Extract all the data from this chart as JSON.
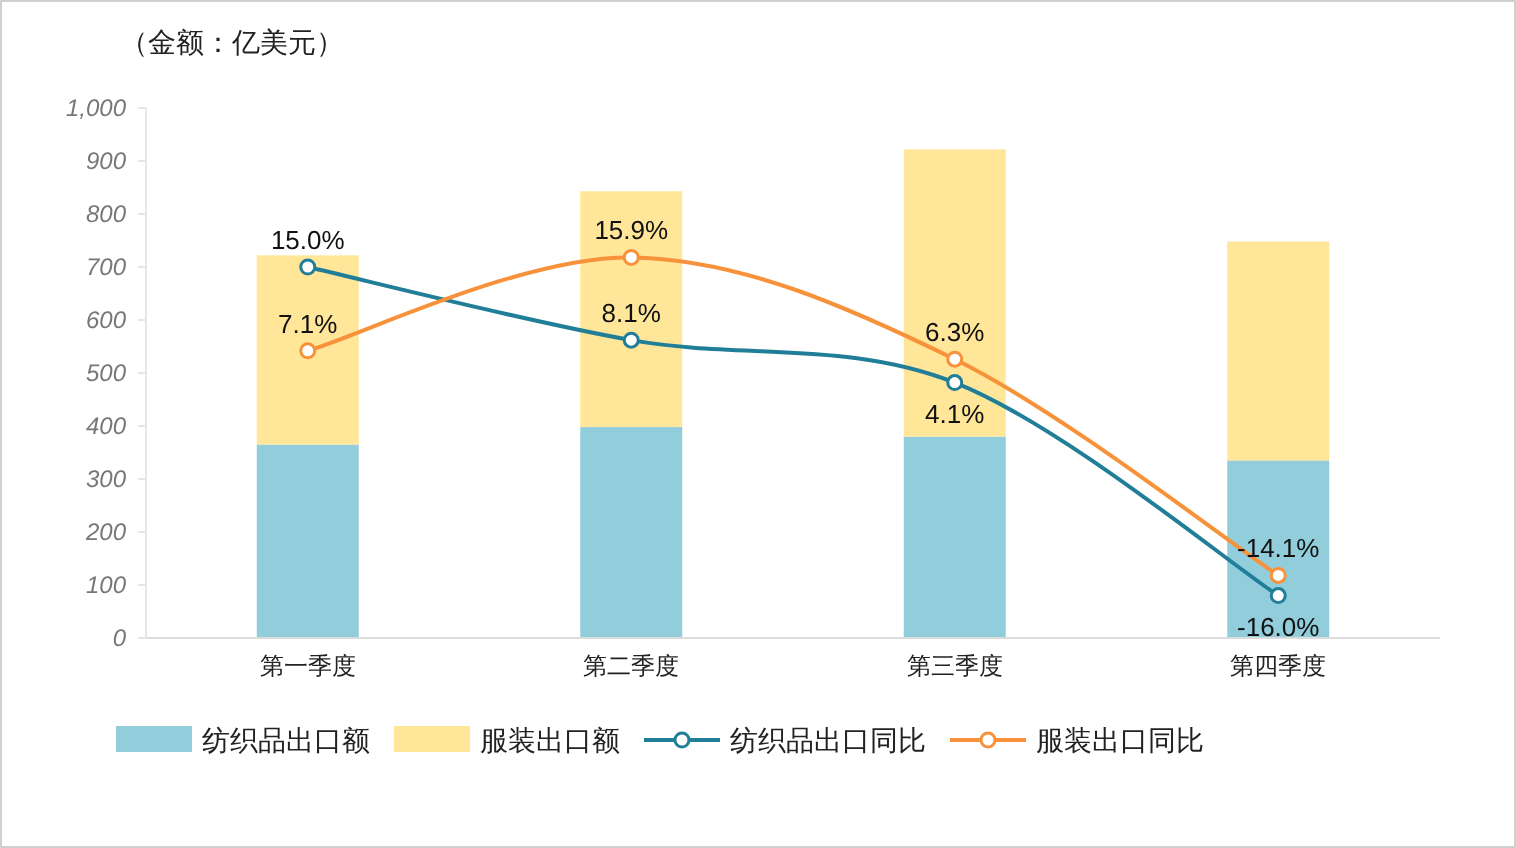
{
  "chart_data": {
    "type": "bar",
    "stacked": true,
    "ylabel": "（金额：亿美元）",
    "categories": [
      "第一季度",
      "第二季度",
      "第三季度",
      "第四季度"
    ],
    "series": [
      {
        "name": "纺织品出口额",
        "color": "#92cddc",
        "values": [
          365,
          398,
          380,
          335
        ]
      },
      {
        "name": "服装出口额",
        "color": "#ffe699",
        "values": [
          357,
          445,
          542,
          413
        ]
      },
      {
        "name": "纺织品出口同比",
        "type": "line",
        "axis": "y2",
        "color": "#217e98",
        "values": [
          15.0,
          8.1,
          4.1,
          -16.0
        ],
        "value_labels": [
          "15.0%",
          "8.1%",
          "4.1%",
          "-16.0%"
        ]
      },
      {
        "name": "服装出口同比",
        "type": "line",
        "axis": "y2",
        "color": "#f7923a",
        "values": [
          7.1,
          15.9,
          6.3,
          -14.1
        ],
        "value_labels": [
          "7.1%",
          "15.9%",
          "6.3%",
          "-14.1%"
        ]
      }
    ],
    "ylim": [
      0,
      1000
    ],
    "yticks": [
      0,
      100,
      200,
      300,
      400,
      500,
      600,
      700,
      800,
      900,
      {
        "value": 1000,
        "label": "1,000"
      }
    ],
    "y2lim": [
      -20,
      30
    ],
    "marker": "circle",
    "legend": "bottom",
    "grid": false
  }
}
